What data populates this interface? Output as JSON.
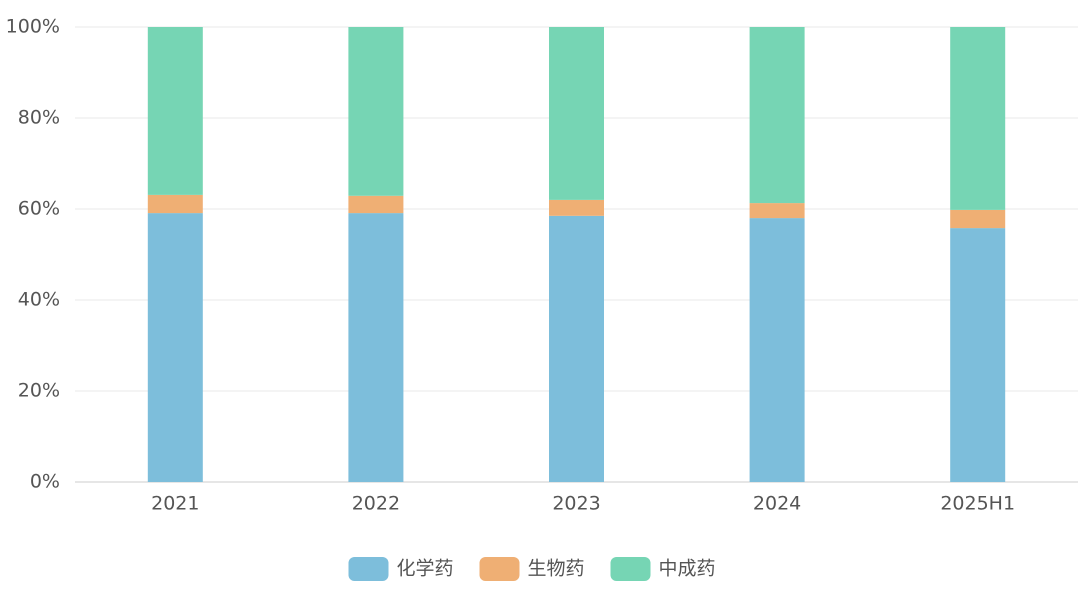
{
  "chart_data": {
    "type": "stacked_bar",
    "categories": [
      "2021",
      "2022",
      "2023",
      "2024",
      "2025H1"
    ],
    "series": [
      {
        "name": "化学药",
        "color": "#7dbedb",
        "values": [
          59.1,
          59.1,
          58.5,
          58.0,
          55.8
        ]
      },
      {
        "name": "生物药",
        "color": "#efaf74",
        "values": [
          4.0,
          3.8,
          3.5,
          3.3,
          4.0
        ]
      },
      {
        "name": "中成药",
        "color": "#76d5b4",
        "values": [
          36.9,
          37.1,
          38.0,
          38.7,
          40.2
        ]
      }
    ],
    "ylim": [
      0,
      100
    ],
    "yticks": [
      {
        "value": 0,
        "label": "0%"
      },
      {
        "value": 20,
        "label": "20%"
      },
      {
        "value": 40,
        "label": "40%"
      },
      {
        "value": 60,
        "label": "60%"
      },
      {
        "value": 80,
        "label": "80%"
      },
      {
        "value": 100,
        "label": "100%"
      }
    ],
    "grid": true,
    "legend": "bottom"
  }
}
